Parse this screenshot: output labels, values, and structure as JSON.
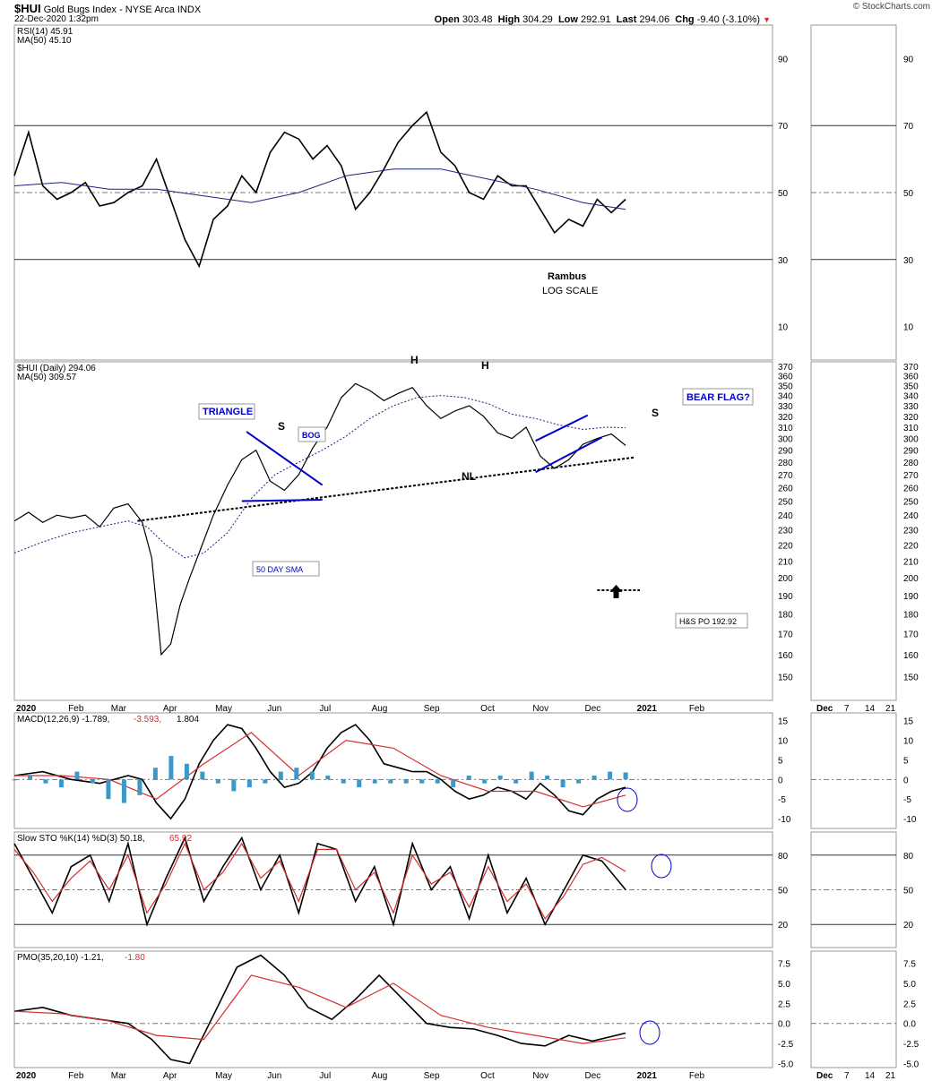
{
  "header": {
    "symbol": "$HUI",
    "name": "Gold Bugs Index - NYSE Arca INDX",
    "date": "22-Dec-2020 1:32pm",
    "brand": "© StockCharts.com",
    "quote": {
      "open_label": "Open",
      "open": "303.48",
      "high_label": "High",
      "high": "304.29",
      "low_label": "Low",
      "low": "292.91",
      "last_label": "Last",
      "last": "294.06",
      "chg_label": "Chg",
      "chg": "-9.40 (-3.10%)"
    }
  },
  "colors": {
    "price": "#000000",
    "ma": "#1a237e",
    "blue_draw": "#0000cc",
    "signal": "#d32f2f",
    "hist": "#3b98c7",
    "up_bar": "#2e7d32",
    "ob_fill": "#4a7a4a",
    "os_fill": "#b03030"
  },
  "x_axis": {
    "labels": [
      "2020",
      "Feb",
      "Mar",
      "Apr",
      "May",
      "Jun",
      "Jul",
      "Aug",
      "Sep",
      "Oct",
      "Nov",
      "Dec",
      "2021",
      "Feb"
    ],
    "side_labels": [
      "Dec",
      "7",
      "14",
      "21"
    ]
  },
  "chart_data": [
    {
      "type": "line",
      "name": "rsi_panel",
      "legend": [
        "RSI(14) 45.91",
        "MA(50) 45.10"
      ],
      "ylim": [
        0,
        100
      ],
      "y_ticks": [
        90,
        70,
        50,
        30,
        10
      ],
      "series": [
        {
          "name": "RSI(14)",
          "x": [
            0,
            6,
            12,
            18,
            24,
            30,
            36,
            42,
            48,
            54,
            60,
            66,
            72,
            78,
            84,
            90,
            96,
            102,
            108,
            114,
            120,
            126,
            132,
            138,
            144,
            150,
            156,
            162,
            168,
            174,
            180,
            186,
            192,
            198,
            204,
            210,
            216,
            222,
            228,
            234,
            240,
            246,
            252,
            258
          ],
          "values": [
            55,
            68,
            52,
            48,
            50,
            53,
            46,
            47,
            50,
            52,
            60,
            48,
            36,
            28,
            42,
            46,
            55,
            50,
            62,
            68,
            66,
            60,
            64,
            58,
            45,
            50,
            57,
            65,
            70,
            74,
            62,
            58,
            50,
            48,
            55,
            52,
            52,
            45,
            38,
            42,
            40,
            48,
            44,
            48
          ]
        },
        {
          "name": "MA(50)",
          "x": [
            0,
            20,
            40,
            60,
            80,
            100,
            120,
            140,
            160,
            180,
            200,
            220,
            240,
            258
          ],
          "values": [
            52,
            53,
            51,
            51,
            49,
            47,
            50,
            55,
            57,
            57,
            54,
            51,
            47,
            45
          ]
        }
      ],
      "annotations": [
        "Rambus",
        "LOG SCALE"
      ]
    },
    {
      "type": "line",
      "name": "price_panel",
      "legend": [
        "$HUI (Daily) 294.06",
        "MA(50) 309.57"
      ],
      "scale": "log",
      "ylim": [
        140,
        375
      ],
      "y_ticks": [
        370,
        360,
        350,
        340,
        330,
        320,
        310,
        300,
        290,
        280,
        270,
        260,
        250,
        240,
        230,
        220,
        210,
        200,
        190,
        180,
        170,
        160,
        150
      ],
      "series": [
        {
          "name": "$HUI",
          "x": [
            0,
            6,
            12,
            18,
            24,
            30,
            36,
            42,
            48,
            54,
            58,
            62,
            66,
            70,
            74,
            78,
            84,
            90,
            96,
            102,
            108,
            114,
            120,
            126,
            132,
            138,
            144,
            150,
            156,
            162,
            168,
            174,
            180,
            186,
            192,
            198,
            204,
            210,
            216,
            222,
            228,
            234,
            240,
            246,
            252,
            258
          ],
          "values": [
            236,
            242,
            235,
            240,
            238,
            240,
            232,
            245,
            248,
            235,
            212,
            160,
            165,
            185,
            200,
            215,
            240,
            262,
            282,
            290,
            265,
            258,
            270,
            292,
            310,
            338,
            352,
            345,
            335,
            342,
            348,
            330,
            318,
            325,
            330,
            320,
            305,
            300,
            310,
            285,
            275,
            282,
            295,
            300,
            304,
            294
          ]
        },
        {
          "name": "MA(50)",
          "x": [
            0,
            12,
            24,
            36,
            48,
            56,
            64,
            72,
            80,
            90,
            100,
            110,
            120,
            130,
            140,
            150,
            160,
            170,
            180,
            190,
            200,
            210,
            220,
            230,
            240,
            250,
            258
          ],
          "values": [
            215,
            222,
            228,
            232,
            236,
            232,
            220,
            212,
            215,
            228,
            252,
            270,
            280,
            290,
            302,
            318,
            330,
            338,
            340,
            338,
            332,
            322,
            318,
            312,
            308,
            310,
            309.57
          ]
        }
      ],
      "annotations": [
        "TRIANGLE",
        "BOG",
        "50 DAY SMA",
        "S",
        "H",
        "H",
        "S",
        "NL",
        "BEAR FLAG?",
        "H&S PO 192.92"
      ]
    },
    {
      "type": "line",
      "name": "macd_panel",
      "legend": [
        "MACD(12,26,9) -1.789,",
        "-3.593,",
        "1.804"
      ],
      "ylim": [
        -12.5,
        17
      ],
      "y_ticks": [
        15,
        10,
        5,
        0,
        -5,
        -10
      ],
      "series": [
        {
          "name": "MACD",
          "x": [
            0,
            12,
            24,
            36,
            48,
            54,
            60,
            66,
            72,
            78,
            84,
            90,
            96,
            102,
            108,
            114,
            120,
            126,
            132,
            138,
            144,
            150,
            156,
            162,
            168,
            174,
            180,
            186,
            192,
            198,
            204,
            210,
            216,
            222,
            228,
            234,
            240,
            246,
            252,
            258
          ],
          "values": [
            1,
            2,
            0,
            -1,
            1,
            0,
            -6,
            -10,
            -5,
            4,
            10,
            14,
            13,
            8,
            2,
            -2,
            -1,
            2,
            8,
            12,
            14,
            10,
            4,
            3,
            2,
            2,
            0,
            -3,
            -5,
            -4,
            -2,
            -3,
            -5,
            -1,
            -4,
            -8,
            -9,
            -5,
            -3,
            -2
          ]
        },
        {
          "name": "Signal",
          "x": [
            0,
            20,
            40,
            60,
            80,
            100,
            120,
            140,
            160,
            180,
            200,
            220,
            240,
            258
          ],
          "values": [
            1,
            1,
            0,
            -5,
            4,
            12,
            1,
            10,
            8,
            1,
            -3,
            -3,
            -7,
            -4
          ]
        }
      ],
      "histogram": [
        0,
        1,
        -1,
        -2,
        2,
        -1,
        -5,
        -6,
        -4,
        3,
        6,
        4,
        2,
        -1,
        -3,
        -2,
        -1,
        2,
        3,
        2,
        1,
        -1,
        -2,
        -1,
        -1,
        -1,
        -1,
        -1,
        -2,
        1,
        -1,
        1,
        -1,
        2,
        1,
        -2,
        -1,
        1,
        2,
        1.804
      ]
    },
    {
      "type": "line",
      "name": "stochastic_panel",
      "legend": [
        "Slow STO %K(14) %D(3) 50.18,",
        "65.92"
      ],
      "ylim": [
        0,
        100
      ],
      "y_ticks": [
        80,
        50,
        20
      ],
      "series": [
        {
          "name": "%K",
          "x": [
            0,
            8,
            16,
            24,
            32,
            40,
            48,
            56,
            64,
            72,
            80,
            88,
            96,
            104,
            112,
            120,
            128,
            136,
            144,
            152,
            160,
            168,
            176,
            184,
            192,
            200,
            208,
            216,
            224,
            232,
            240,
            248,
            258
          ],
          "values": [
            90,
            60,
            30,
            70,
            80,
            40,
            90,
            20,
            60,
            95,
            40,
            70,
            95,
            50,
            80,
            30,
            90,
            85,
            40,
            70,
            20,
            90,
            50,
            70,
            25,
            80,
            30,
            60,
            20,
            50,
            80,
            75,
            50
          ]
        },
        {
          "name": "%D",
          "x": [
            0,
            8,
            16,
            24,
            32,
            40,
            48,
            56,
            64,
            72,
            80,
            88,
            96,
            104,
            112,
            120,
            128,
            136,
            144,
            152,
            160,
            168,
            176,
            184,
            192,
            200,
            208,
            216,
            224,
            232,
            240,
            248,
            258
          ],
          "values": [
            85,
            65,
            40,
            60,
            75,
            50,
            80,
            30,
            55,
            90,
            50,
            65,
            90,
            60,
            75,
            40,
            85,
            85,
            50,
            65,
            30,
            80,
            55,
            65,
            35,
            70,
            40,
            55,
            25,
            45,
            72,
            78,
            65.92
          ]
        }
      ]
    },
    {
      "type": "line",
      "name": "pmo_panel",
      "legend": [
        "PMO(35,20,10) -1.21,",
        "-1.80"
      ],
      "ylim": [
        -5.5,
        9
      ],
      "y_ticks": [
        7.5,
        5.0,
        2.5,
        0.0,
        -2.5,
        -5.0
      ],
      "series": [
        {
          "name": "PMO",
          "x": [
            0,
            12,
            24,
            36,
            48,
            58,
            66,
            74,
            84,
            94,
            104,
            114,
            124,
            134,
            144,
            154,
            164,
            174,
            184,
            194,
            204,
            214,
            224,
            234,
            244,
            258
          ],
          "values": [
            1.5,
            2,
            1,
            0.5,
            0,
            -2,
            -4.5,
            -5,
            1,
            7,
            8.5,
            6,
            2,
            0.5,
            3,
            6,
            3,
            0,
            -0.5,
            -0.7,
            -1.5,
            -2.5,
            -2.8,
            -1.5,
            -2.2,
            -1.21
          ]
        },
        {
          "name": "Signal",
          "x": [
            0,
            20,
            40,
            60,
            80,
            100,
            120,
            140,
            160,
            180,
            200,
            220,
            240,
            258
          ],
          "values": [
            1.5,
            1.2,
            0.3,
            -1.5,
            -2,
            6,
            4.5,
            2,
            5,
            1,
            -0.5,
            -1.5,
            -2.5,
            -1.8
          ]
        }
      ]
    }
  ]
}
